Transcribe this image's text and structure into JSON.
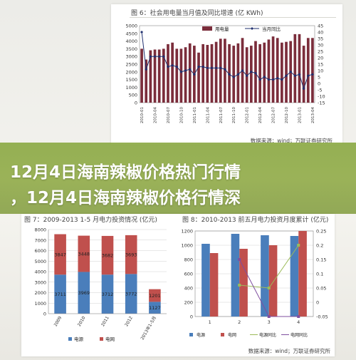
{
  "banner": {
    "line1": "12月4日海南辣椒价格热门行情",
    "line2": "，12月4日海南辣椒价格行情深"
  },
  "colors": {
    "banner": "#8fab4a",
    "bar_maroon": "#7b2d3b",
    "line_navy": "#1f2f6e",
    "bar_blue": "#4a7ebb",
    "bar_red": "#c0504d",
    "line_green": "#9bbb59",
    "line_purple": "#7f4f9f"
  },
  "panels": {
    "top": {
      "title": "图 6：社会用电量当月值及同比增速 (亿 KWh)",
      "source": "数据来源：wind；万联证券研究所"
    },
    "bottom_left": {
      "title": "图 7：2009-2013 1-5 月电力投资情况 (亿元)"
    },
    "bottom_right": {
      "title": "图 8：2010-2013 前五月电力投资月度累计 (亿元)",
      "source": "数据来源：wind；万联证券研究所"
    }
  },
  "chart_data": [
    {
      "id": "chart1",
      "type": "bar",
      "title": "图 6：社会用电量当月值及同比增速 (亿 KWh)",
      "categories": [
        "2010-01",
        "2010-02",
        "2010-03",
        "2010-04",
        "2010-05",
        "2010-06",
        "2010-07",
        "2010-08",
        "2010-09",
        "2010-10",
        "2010-11",
        "2010-12",
        "2011-01",
        "2011-02",
        "2011-03",
        "2011-04",
        "2011-05",
        "2011-06",
        "2011-07",
        "2011-08",
        "2011-09",
        "2011-10",
        "2011-11",
        "2011-12",
        "2012-01",
        "2012-02",
        "2012-03",
        "2012-04",
        "2012-05",
        "2012-06",
        "2012-07",
        "2012-08",
        "2012-09",
        "2012-10",
        "2012-11",
        "2012-12",
        "2013-01",
        "2013-02",
        "2013-03",
        "2013-04"
      ],
      "x_tick_labels": [
        "2010-01",
        "2010-04",
        "2010-07",
        "2010-10",
        "2011-01",
        "2011-04",
        "2011-07",
        "2011-10",
        "2012-01",
        "2012-04",
        "2012-07",
        "2012-10",
        "2013-01",
        "2013-04"
      ],
      "series": [
        {
          "name": "用电量",
          "kind": "bar",
          "axis": "left",
          "color": "#7b2d3b",
          "values": [
            3500,
            2800,
            3400,
            3450,
            3450,
            3500,
            3800,
            3900,
            3500,
            3500,
            3600,
            3850,
            3700,
            3250,
            3800,
            3750,
            3800,
            3950,
            4150,
            4150,
            3800,
            3700,
            3850,
            4200,
            3600,
            3700,
            4000,
            3800,
            3900,
            4100,
            4300,
            4200,
            3900,
            3950,
            4000,
            4450,
            4450,
            3700,
            4200,
            4200
          ]
        },
        {
          "name": "当月同比",
          "kind": "line",
          "axis": "right",
          "color": "#1f2f6e",
          "values": [
            40,
            11,
            21,
            21,
            21,
            21,
            13,
            14,
            13,
            9,
            10,
            11,
            7,
            13,
            13,
            12,
            12,
            12,
            12,
            11,
            7,
            5,
            7,
            10,
            6,
            9,
            8,
            3,
            5,
            3,
            3,
            4,
            3,
            6,
            9,
            6,
            7,
            -4,
            6,
            7
          ]
        }
      ],
      "ylim_left": [
        0,
        5000
      ],
      "yticks_left": [
        0,
        500,
        1000,
        1500,
        2000,
        2500,
        3000,
        3500,
        4000,
        4500,
        5000
      ],
      "ylim_right": [
        -15,
        45
      ],
      "yticks_right": [
        -15,
        -10,
        -5,
        0,
        5,
        10,
        15,
        20,
        25,
        30,
        35,
        40,
        45
      ],
      "legend": "top-right"
    },
    {
      "id": "chart2",
      "type": "bar",
      "stacked": true,
      "categories": [
        "2009",
        "2010",
        "2011",
        "2012",
        "2013年1-5月"
      ],
      "series": [
        {
          "name": "电源",
          "color": "#4a7ebb",
          "values": [
            3711,
            3969,
            3712,
            3772,
            1127
          ]
        },
        {
          "name": "电网",
          "color": "#c0504d",
          "values": [
            3847,
            3448,
            3682,
            3693,
            1201
          ]
        }
      ],
      "ylim": [
        0,
        8000
      ],
      "yticks": [
        0,
        1000,
        2000,
        3000,
        4000,
        5000,
        6000,
        7000,
        8000
      ],
      "legend": "bottom"
    },
    {
      "id": "chart3",
      "type": "bar",
      "categories": [
        "1",
        "2",
        "3",
        "4"
      ],
      "series": [
        {
          "name": "电源",
          "kind": "bar",
          "axis": "left",
          "color": "#4a7ebb",
          "values": [
            1020,
            1160,
            1140,
            1130
          ]
        },
        {
          "name": "电网",
          "kind": "bar",
          "axis": "left",
          "color": "#c0504d",
          "values": [
            890,
            950,
            1000,
            1200
          ]
        },
        {
          "name": "电源同比",
          "kind": "line",
          "axis": "right",
          "color": "#9bbb59",
          "values": [
            null,
            0.06,
            0.05,
            0.2
          ]
        },
        {
          "name": "电网同比",
          "kind": "line",
          "axis": "right",
          "color": "#7f4f9f",
          "values": [
            null,
            0.15,
            -0.05,
            -0.05
          ]
        }
      ],
      "ylim_left": [
        0,
        1200
      ],
      "yticks_left": [
        0,
        200,
        400,
        600,
        800,
        1000,
        1200
      ],
      "ylim_right": [
        -0.05,
        0.25
      ],
      "yticks_right": [
        -0.05,
        0,
        0.05,
        0.1,
        0.15,
        0.2,
        0.25
      ],
      "legend": "bottom"
    }
  ]
}
